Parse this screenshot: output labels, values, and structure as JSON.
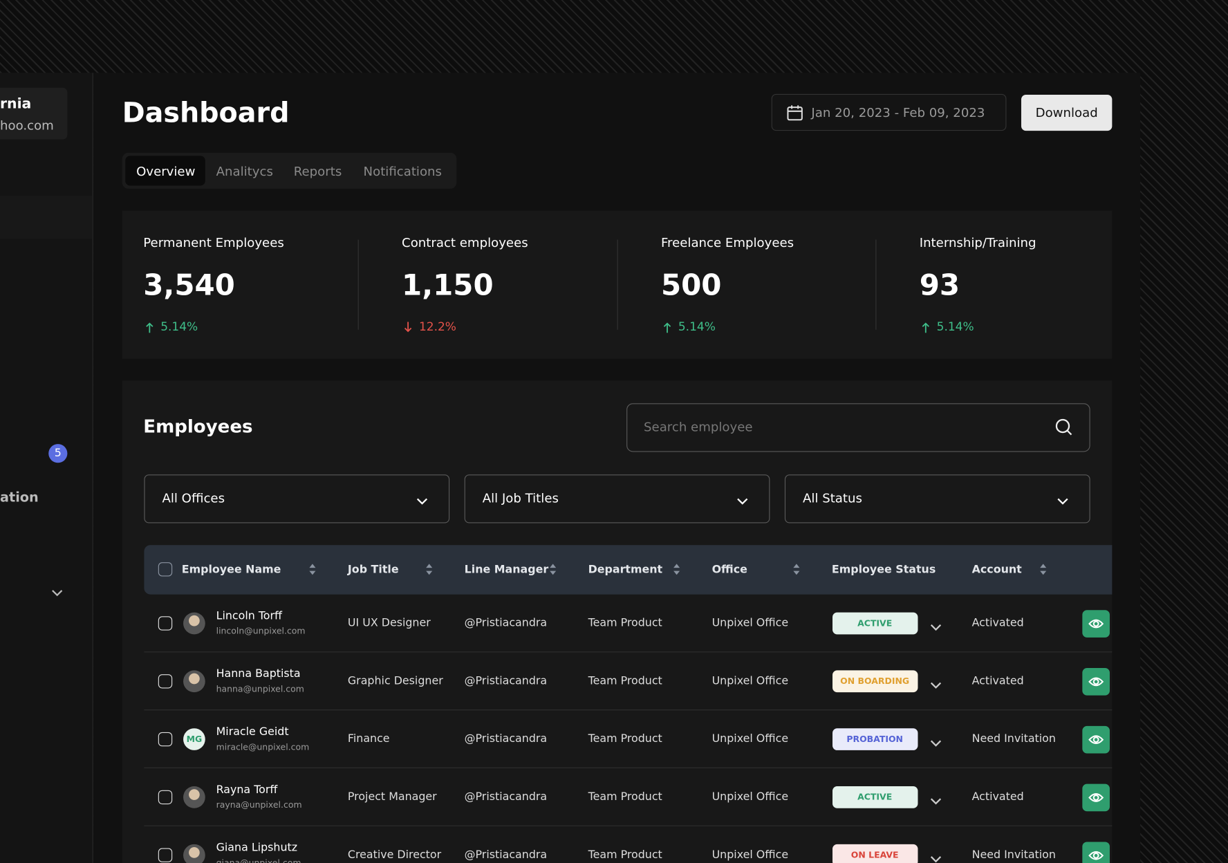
{
  "sidebar": {
    "workspace_name": "rnia",
    "workspace_email": "hoo.com",
    "badge": "5",
    "item": "ation"
  },
  "header": {
    "title": "Dashboard",
    "date_range": "Jan 20, 2023 - Feb 09, 2023",
    "download": "Download"
  },
  "tabs": [
    "Overview",
    "Analitycs",
    "Reports",
    "Notifications"
  ],
  "stats": [
    {
      "label": "Permanent Employees",
      "value": "3,540",
      "change": "5.14%",
      "trend": "up",
      "color": "#3fbf8a"
    },
    {
      "label": "Contract employees",
      "value": "1,150",
      "change": "12.2%",
      "trend": "down",
      "color": "#e5534b"
    },
    {
      "label": "Freelance Employees",
      "value": "500",
      "change": "5.14%",
      "trend": "up",
      "color": "#3fbf8a"
    },
    {
      "label": "Internship/Training",
      "value": "93",
      "change": "5.14%",
      "trend": "up",
      "color": "#3fbf8a"
    }
  ],
  "employees": {
    "title": "Employees",
    "search_placeholder": "Search employee",
    "filters": [
      "All Offices",
      "All Job Titles",
      "All Status"
    ],
    "columns": [
      "Employee Name",
      "Job Title",
      "Line Manager",
      "Department",
      "Office",
      "Employee Status",
      "Account"
    ],
    "rows": [
      {
        "name": "Lincoln Torff",
        "email": "lincoln@unpixel.com",
        "job_title": "UI UX Designer",
        "line_manager": "@Pristiacandra",
        "department": "Team Product",
        "office": "Unpixel Office",
        "status": "ACTIVE",
        "status_color": "#2f9e6e",
        "account": "Activated"
      },
      {
        "name": "Hanna Baptista",
        "email": "hanna@unpixel.com",
        "job_title": "Graphic Designer",
        "line_manager": "@Pristiacandra",
        "department": "Team Product",
        "office": "Unpixel Office",
        "status": "ON BOARDING",
        "status_color": "#e0a030",
        "account": "Activated"
      },
      {
        "name": "Miracle Geidt",
        "email": "miracle@unpixel.com",
        "initials": "MG",
        "job_title": "Finance",
        "line_manager": "@Pristiacandra",
        "department": "Team Product",
        "office": "Unpixel Office",
        "status": "PROBATION",
        "status_color": "#5563d6",
        "account": "Need Invitation"
      },
      {
        "name": "Rayna Torff",
        "email": "rayna@unpixel.com",
        "job_title": "Project Manager",
        "line_manager": "@Pristiacandra",
        "department": "Team Product",
        "office": "Unpixel Office",
        "status": "ACTIVE",
        "status_color": "#2f9e6e",
        "account": "Activated"
      },
      {
        "name": "Giana Lipshutz",
        "email": "giana@unpixel.com",
        "job_title": "Creative Director",
        "line_manager": "@Pristiacandra",
        "department": "Team Product",
        "office": "Unpixel Office",
        "status": "ON LEAVE",
        "status_color": "#d9443a",
        "account": "Need Invitation"
      }
    ]
  }
}
